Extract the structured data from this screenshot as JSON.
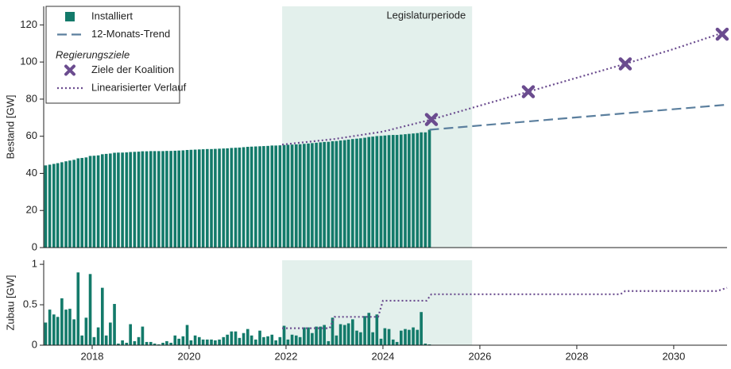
{
  "chart_data": [
    {
      "type": "bar",
      "ylabel": "Bestand [GW]",
      "xlim": [
        2017,
        2031.1
      ],
      "ylim": [
        0,
        130
      ],
      "yticks": [
        0,
        20,
        40,
        60,
        80,
        100,
        120
      ],
      "span": {
        "label": "Legislaturperiode",
        "x": [
          2021.92,
          2025.84
        ],
        "color": "#e3f0ec"
      },
      "legend": "upper left",
      "legend_heading": "Regierungsziele",
      "x": [
        2017.04,
        2017.125,
        2017.21,
        2017.29,
        2017.375,
        2017.46,
        2017.54,
        2017.625,
        2017.71,
        2017.79,
        2017.875,
        2017.96,
        2018.04,
        2018.125,
        2018.21,
        2018.29,
        2018.375,
        2018.46,
        2018.54,
        2018.625,
        2018.71,
        2018.79,
        2018.875,
        2018.96,
        2019.04,
        2019.125,
        2019.21,
        2019.29,
        2019.375,
        2019.46,
        2019.54,
        2019.625,
        2019.71,
        2019.79,
        2019.875,
        2019.96,
        2020.04,
        2020.125,
        2020.21,
        2020.29,
        2020.375,
        2020.46,
        2020.54,
        2020.625,
        2020.71,
        2020.79,
        2020.875,
        2020.96,
        2021.04,
        2021.125,
        2021.21,
        2021.29,
        2021.375,
        2021.46,
        2021.54,
        2021.625,
        2021.71,
        2021.79,
        2021.875,
        2021.96,
        2022.04,
        2022.125,
        2022.21,
        2022.29,
        2022.375,
        2022.46,
        2022.54,
        2022.625,
        2022.71,
        2022.79,
        2022.875,
        2022.96,
        2023.04,
        2023.125,
        2023.21,
        2023.29,
        2023.375,
        2023.46,
        2023.54,
        2023.625,
        2023.71,
        2023.79,
        2023.875,
        2023.96,
        2024.04,
        2024.125,
        2024.21,
        2024.29,
        2024.375,
        2024.46,
        2024.54,
        2024.625,
        2024.71,
        2024.79,
        2024.875,
        2024.96
      ],
      "series": [
        {
          "name": "Installiert",
          "type": "bar",
          "color": "#137a6a",
          "values": [
            44.3,
            44.7,
            45.1,
            45.5,
            46.0,
            46.5,
            46.9,
            47.3,
            48.1,
            48.3,
            48.6,
            49.4,
            49.5,
            49.7,
            50.3,
            50.5,
            50.7,
            51.1,
            51.2,
            51.2,
            51.3,
            51.5,
            51.6,
            51.7,
            51.9,
            51.9,
            52.0,
            52.0,
            52.0,
            52.0,
            52.1,
            52.1,
            52.2,
            52.3,
            52.4,
            52.6,
            52.7,
            52.8,
            52.9,
            53.0,
            53.1,
            53.1,
            53.2,
            53.3,
            53.4,
            53.5,
            53.7,
            53.8,
            53.9,
            54.1,
            54.3,
            54.4,
            54.5,
            54.6,
            54.7,
            54.8,
            55.0,
            55.0,
            55.1,
            55.3,
            55.4,
            55.5,
            55.6,
            55.7,
            55.9,
            56.1,
            56.3,
            56.5,
            56.7,
            56.9,
            57.0,
            57.3,
            57.4,
            57.7,
            57.9,
            58.2,
            58.5,
            58.7,
            58.9,
            59.2,
            59.6,
            59.8,
            60.1,
            60.2,
            60.4,
            60.6,
            60.7,
            60.7,
            60.9,
            61.1,
            61.3,
            61.5,
            61.7,
            62.1,
            62.1,
            63.5
          ]
        },
        {
          "name": "12-Monats-Trend",
          "type": "line",
          "dash": "dashed",
          "color": "#5b7f9e",
          "x": [
            2024.96,
            2031.1
          ],
          "values": [
            63.5,
            77
          ]
        },
        {
          "name": "Ziele der Koalition",
          "type": "scatter",
          "color": "#6b4c8f",
          "group": "Regierungsziele",
          "x": [
            2025,
            2027,
            2029,
            2031
          ],
          "values": [
            69,
            84,
            99,
            115
          ]
        },
        {
          "name": "Linearisierter Verlauf",
          "type": "line",
          "dash": "dotted",
          "color": "#6b4c8f",
          "group": "Regierungsziele",
          "x": [
            2021.92,
            2023,
            2024,
            2025,
            2026,
            2027,
            2028,
            2029,
            2030,
            2031.1
          ],
          "values": [
            55.5,
            58.5,
            62.5,
            69,
            76.5,
            84,
            91.5,
            99,
            107,
            116.5
          ]
        }
      ]
    },
    {
      "type": "bar",
      "ylabel": "Zubau [GW]",
      "xlim": [
        2017,
        2031.1
      ],
      "ylim": [
        0,
        1.05
      ],
      "yticks": [
        0,
        0.5,
        1
      ],
      "xticks": [
        2018,
        2020,
        2022,
        2024,
        2026,
        2028,
        2030
      ],
      "span": {
        "x": [
          2021.92,
          2025.84
        ],
        "color": "#e3f0ec"
      },
      "x": [
        2017.04,
        2017.125,
        2017.21,
        2017.29,
        2017.375,
        2017.46,
        2017.54,
        2017.625,
        2017.71,
        2017.79,
        2017.875,
        2017.96,
        2018.04,
        2018.125,
        2018.21,
        2018.29,
        2018.375,
        2018.46,
        2018.54,
        2018.625,
        2018.71,
        2018.79,
        2018.875,
        2018.96,
        2019.04,
        2019.125,
        2019.21,
        2019.29,
        2019.375,
        2019.46,
        2019.54,
        2019.625,
        2019.71,
        2019.79,
        2019.875,
        2019.96,
        2020.04,
        2020.125,
        2020.21,
        2020.29,
        2020.375,
        2020.46,
        2020.54,
        2020.625,
        2020.71,
        2020.79,
        2020.875,
        2020.96,
        2021.04,
        2021.125,
        2021.21,
        2021.29,
        2021.375,
        2021.46,
        2021.54,
        2021.625,
        2021.71,
        2021.79,
        2021.875,
        2021.96,
        2022.04,
        2022.125,
        2022.21,
        2022.29,
        2022.375,
        2022.46,
        2022.54,
        2022.625,
        2022.71,
        2022.79,
        2022.875,
        2022.96,
        2023.04,
        2023.125,
        2023.21,
        2023.29,
        2023.375,
        2023.46,
        2023.54,
        2023.625,
        2023.71,
        2023.79,
        2023.875,
        2023.96,
        2024.04,
        2024.125,
        2024.21,
        2024.29,
        2024.375,
        2024.46,
        2024.54,
        2024.625,
        2024.71,
        2024.79,
        2024.875,
        2024.96
      ],
      "series": [
        {
          "type": "bar",
          "color": "#137a6a",
          "values": [
            0.28,
            0.44,
            0.38,
            0.35,
            0.58,
            0.44,
            0.45,
            0.32,
            0.9,
            0.12,
            0.34,
            0.88,
            0.1,
            0.22,
            0.71,
            0.12,
            0.28,
            0.51,
            0.02,
            0.06,
            0.03,
            0.26,
            0.05,
            0.1,
            0.23,
            0.04,
            0.04,
            0.02,
            0.01,
            0.03,
            0.05,
            0.03,
            0.12,
            0.08,
            0.11,
            0.25,
            0.06,
            0.12,
            0.1,
            0.07,
            0.07,
            0.07,
            0.06,
            0.07,
            0.1,
            0.13,
            0.17,
            0.17,
            0.09,
            0.15,
            0.2,
            0.12,
            0.07,
            0.18,
            0.1,
            0.11,
            0.13,
            0.06,
            0.1,
            0.24,
            0.07,
            0.13,
            0.12,
            0.1,
            0.22,
            0.22,
            0.15,
            0.23,
            0.23,
            0.25,
            0.05,
            0.34,
            0.12,
            0.26,
            0.25,
            0.27,
            0.32,
            0.18,
            0.16,
            0.36,
            0.4,
            0.16,
            0.38,
            0.08,
            0.21,
            0.2,
            0.07,
            0.04,
            0.18,
            0.2,
            0.19,
            0.22,
            0.19,
            0.41,
            0.02,
            0.01
          ]
        },
        {
          "type": "line",
          "dash": "dotted",
          "color": "#6b4c8f",
          "x": [
            2021.92,
            2022.9,
            2023.0,
            2023.9,
            2024.0,
            2024.9,
            2025.0,
            2028.9,
            2029.0,
            2030.9,
            2031.1
          ],
          "values": [
            0.21,
            0.21,
            0.35,
            0.35,
            0.55,
            0.55,
            0.63,
            0.63,
            0.67,
            0.67,
            0.71
          ]
        }
      ]
    }
  ]
}
